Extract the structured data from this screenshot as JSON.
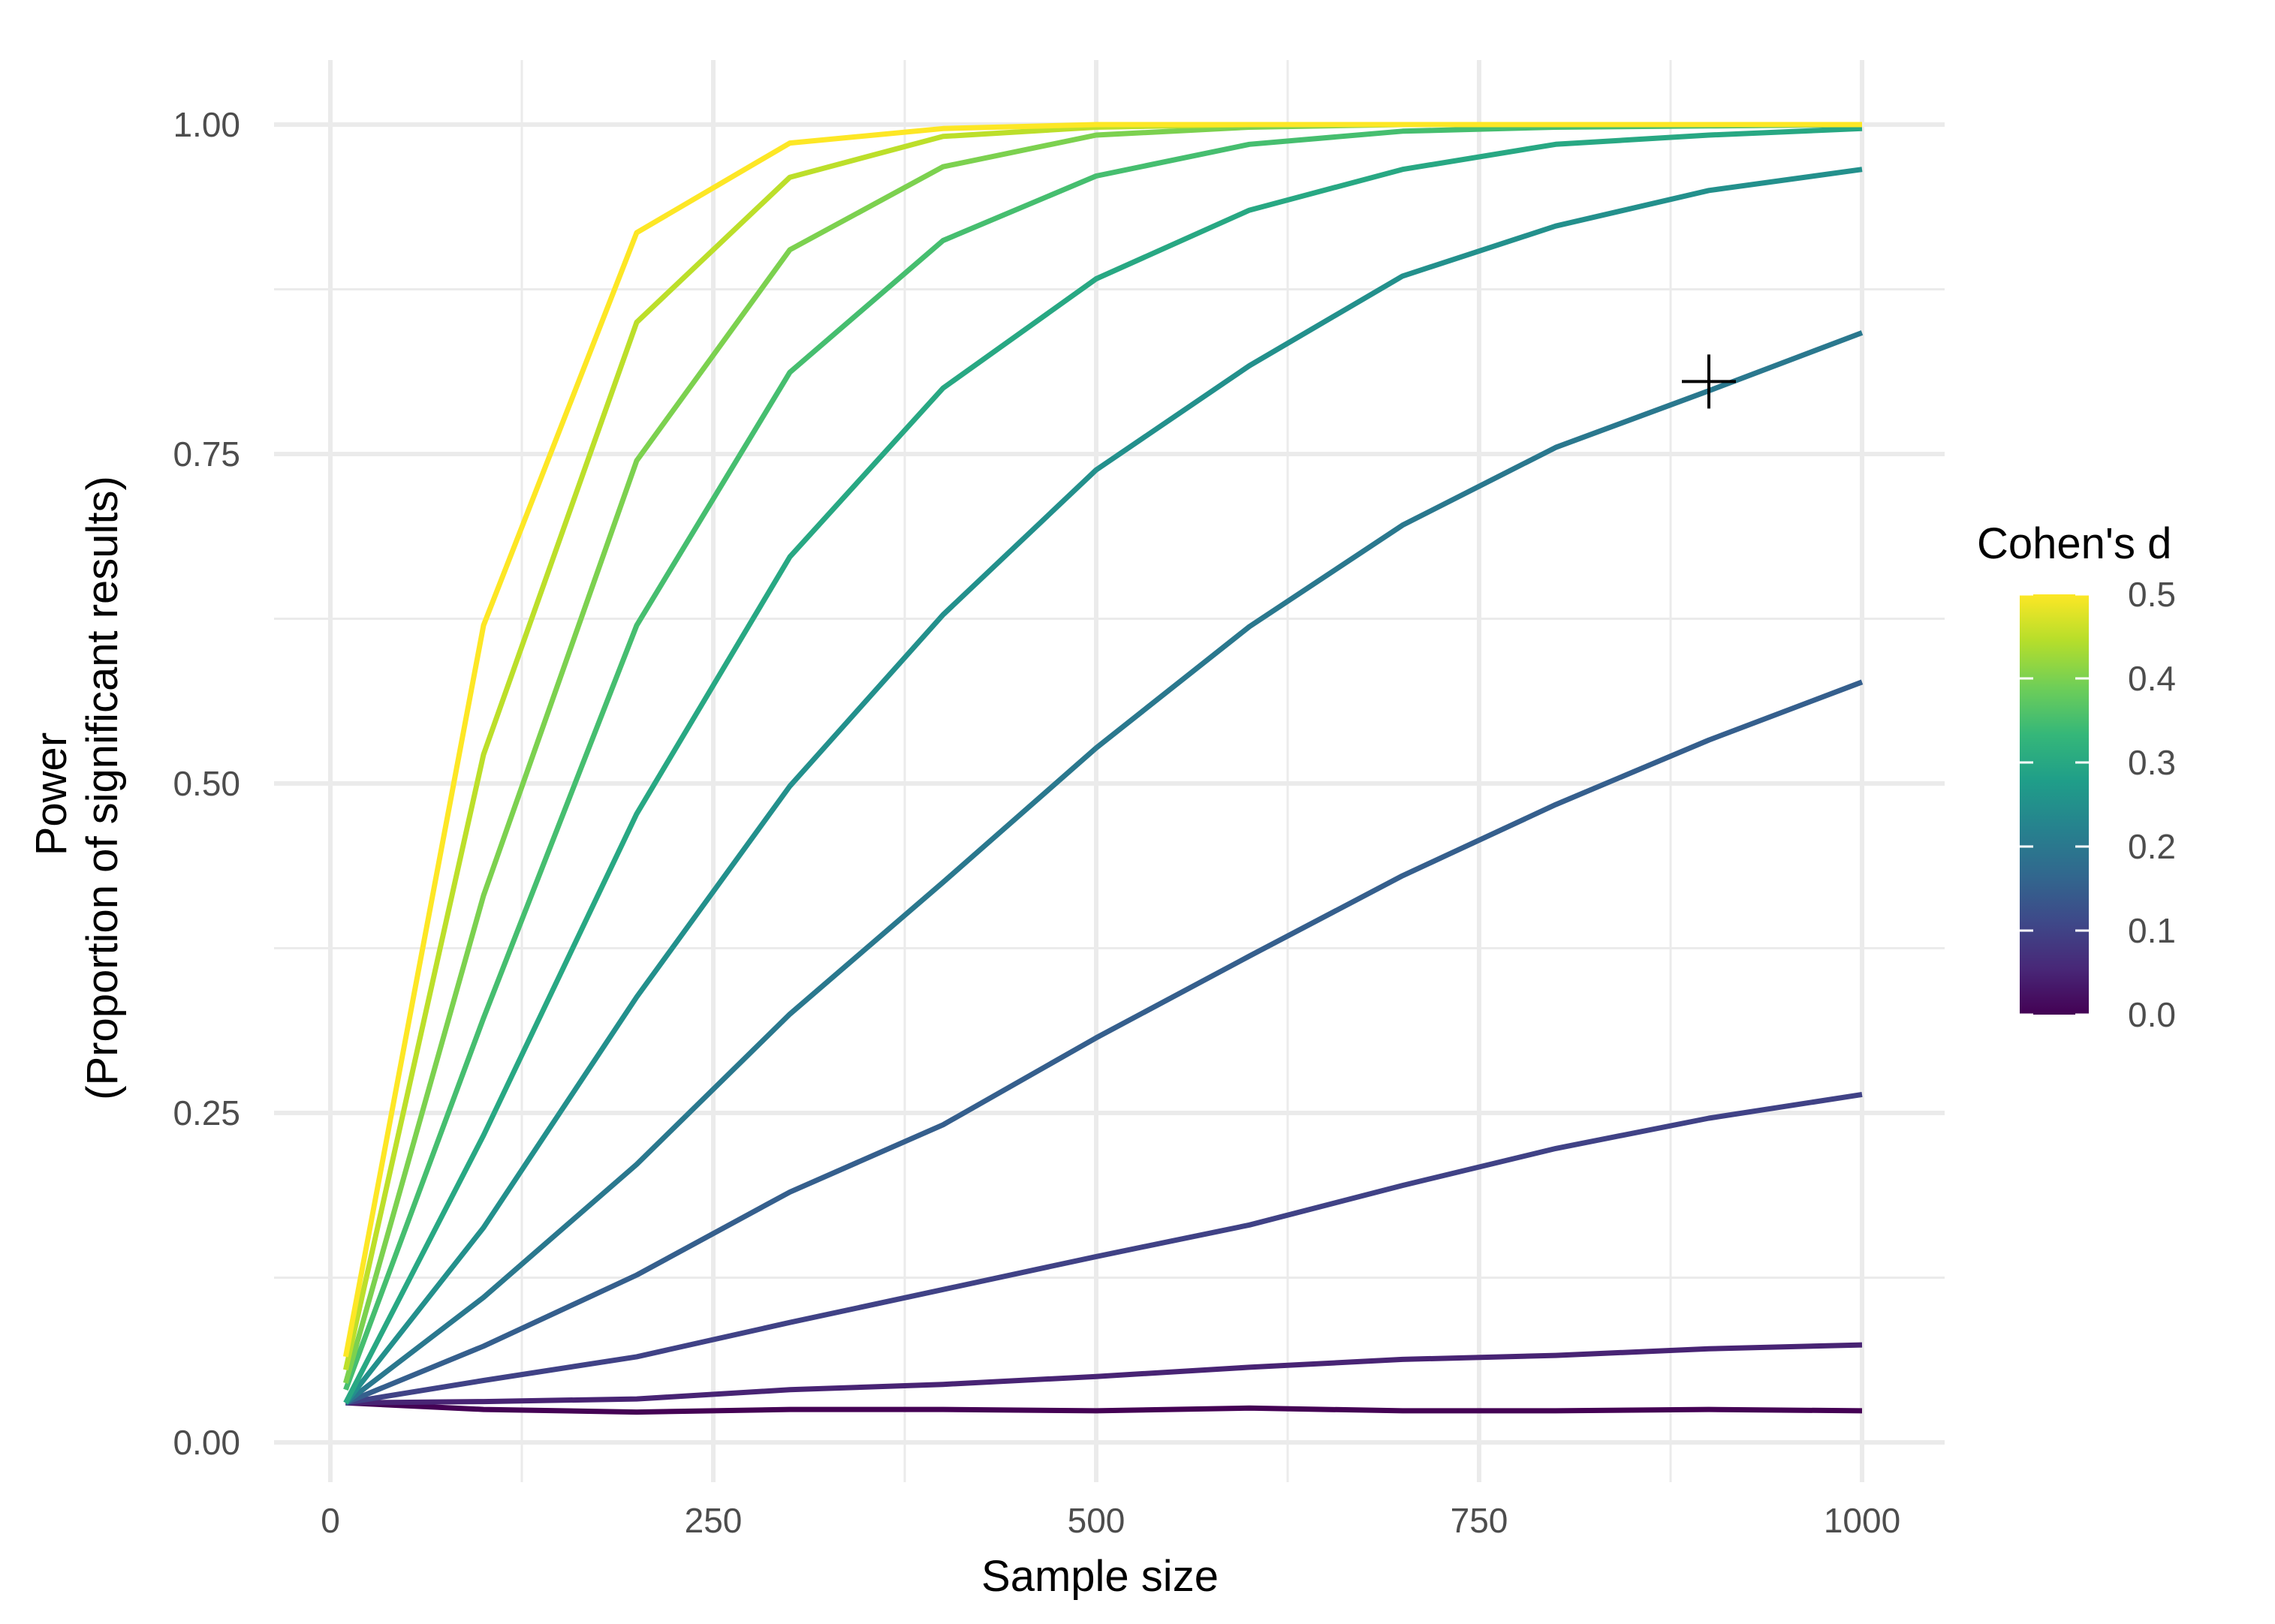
{
  "chart_data": {
    "type": "line",
    "xlabel": "Sample size",
    "ylabel": [
      "Power",
      "(Proportion of significant results)"
    ],
    "xlim": [
      0,
      1000
    ],
    "ylim": [
      0,
      1
    ],
    "x_ticks": [
      0,
      250,
      500,
      750,
      1000
    ],
    "x_tick_labels": [
      "0",
      "250",
      "500",
      "750",
      "1000"
    ],
    "x_minor_ticks": [
      125,
      375,
      625,
      875
    ],
    "y_ticks": [
      0,
      0.25,
      0.5,
      0.75,
      1
    ],
    "y_tick_labels": [
      "0.00",
      "0.25",
      "0.50",
      "0.75",
      "1.00"
    ],
    "y_minor_ticks": [
      0.125,
      0.375,
      0.625,
      0.875
    ],
    "grid": true,
    "legend": {
      "title": "Cohen's d",
      "position": "right",
      "type": "colorbar",
      "min": 0,
      "max": 0.5,
      "labels": [
        "0.5",
        "0.4",
        "0.3",
        "0.2",
        "0.1",
        "0.0"
      ],
      "label_values": [
        0.5,
        0.4,
        0.3,
        0.2,
        0.1,
        0.0
      ],
      "colorscale": [
        "#440154",
        "#482878",
        "#3e4989",
        "#31688e",
        "#26828e",
        "#1f9e89",
        "#35b779",
        "#6ece58",
        "#b5de2b",
        "#fde725"
      ]
    },
    "x": [
      10,
      100,
      200,
      300,
      400,
      500,
      600,
      700,
      800,
      900,
      1000
    ],
    "series": [
      {
        "d": 0.0,
        "values": [
          0.03,
          0.025,
          0.023,
          0.025,
          0.025,
          0.024,
          0.026,
          0.024,
          0.024,
          0.025,
          0.024
        ]
      },
      {
        "d": 0.05,
        "values": [
          0.03,
          0.031,
          0.033,
          0.04,
          0.044,
          0.05,
          0.057,
          0.063,
          0.066,
          0.071,
          0.074
        ]
      },
      {
        "d": 0.1,
        "values": [
          0.03,
          0.047,
          0.065,
          0.091,
          0.116,
          0.141,
          0.165,
          0.195,
          0.223,
          0.246,
          0.264
        ]
      },
      {
        "d": 0.15,
        "values": [
          0.03,
          0.073,
          0.127,
          0.19,
          0.241,
          0.307,
          0.369,
          0.43,
          0.484,
          0.533,
          0.577
        ]
      },
      {
        "d": 0.2,
        "values": [
          0.03,
          0.11,
          0.211,
          0.325,
          0.425,
          0.527,
          0.619,
          0.696,
          0.755,
          0.798,
          0.842
        ]
      },
      {
        "d": 0.25,
        "values": [
          0.03,
          0.163,
          0.338,
          0.498,
          0.628,
          0.738,
          0.817,
          0.885,
          0.923,
          0.95,
          0.966
        ]
      },
      {
        "d": 0.3,
        "values": [
          0.03,
          0.233,
          0.477,
          0.672,
          0.8,
          0.883,
          0.935,
          0.966,
          0.985,
          0.992,
          0.997
        ]
      },
      {
        "d": 0.35,
        "values": [
          0.04,
          0.322,
          0.62,
          0.812,
          0.912,
          0.961,
          0.985,
          0.995,
          0.998,
          0.999,
          1.0
        ]
      },
      {
        "d": 0.4,
        "values": [
          0.045,
          0.415,
          0.745,
          0.905,
          0.968,
          0.992,
          0.998,
          1.0,
          1.0,
          1.0,
          1.0
        ]
      },
      {
        "d": 0.45,
        "values": [
          0.055,
          0.522,
          0.85,
          0.96,
          0.991,
          0.998,
          1.0,
          1.0,
          1.0,
          1.0,
          1.0
        ]
      },
      {
        "d": 0.5,
        "values": [
          0.065,
          0.62,
          0.918,
          0.986,
          0.997,
          1.0,
          1.0,
          1.0,
          1.0,
          1.0,
          1.0
        ]
      }
    ],
    "annotations": [
      {
        "type": "plus-marker",
        "x": 900,
        "y": 0.805
      }
    ]
  }
}
